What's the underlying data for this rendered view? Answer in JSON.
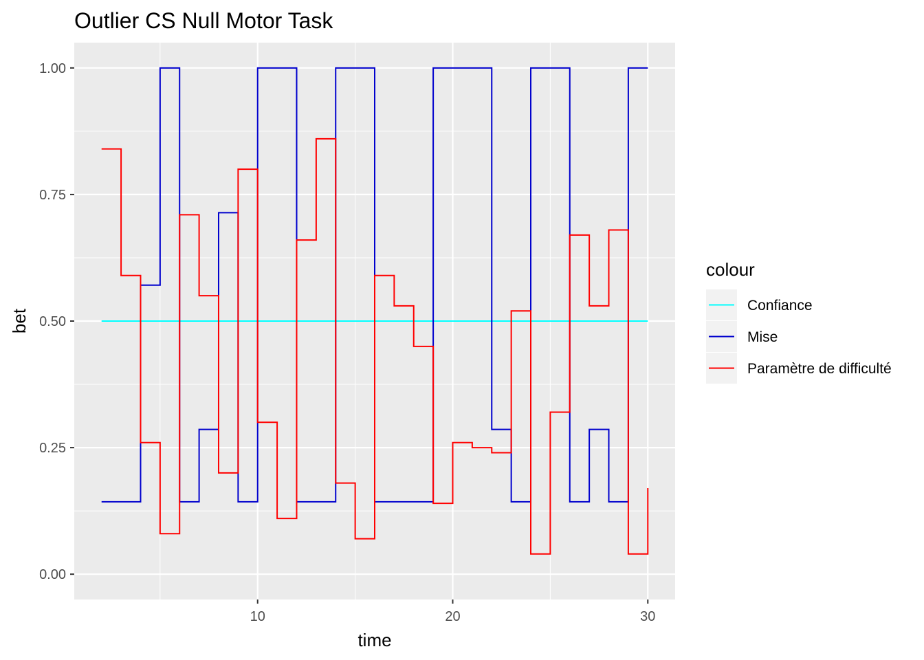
{
  "chart_data": {
    "type": "line",
    "step": true,
    "title": "Outlier CS Null Motor Task",
    "xlabel": "time",
    "ylabel": "bet",
    "xlim": [
      0.6,
      31.4
    ],
    "ylim": [
      -0.05,
      1.05
    ],
    "x_ticks": [
      10,
      20,
      30
    ],
    "x_tick_labels": [
      "10",
      "20",
      "30"
    ],
    "y_ticks": [
      0,
      0.25,
      0.5,
      0.75,
      1
    ],
    "y_tick_labels": [
      "0.00",
      "0.25",
      "0.50",
      "0.75",
      "1.00"
    ],
    "grid": true,
    "legend": {
      "title": "colour",
      "position": "right"
    },
    "x": [
      2,
      3,
      4,
      5,
      6,
      7,
      8,
      9,
      10,
      11,
      12,
      13,
      14,
      15,
      16,
      17,
      18,
      19,
      20,
      21,
      22,
      23,
      24,
      25,
      26,
      27,
      28,
      29,
      30
    ],
    "series": [
      {
        "name": "Confiance",
        "color": "#00FFFF",
        "values": [
          0.5,
          0.5,
          0.5,
          0.5,
          0.5,
          0.5,
          0.5,
          0.5,
          0.5,
          0.5,
          0.5,
          0.5,
          0.5,
          0.5,
          0.5,
          0.5,
          0.5,
          0.5,
          0.5,
          0.5,
          0.5,
          0.5,
          0.5,
          0.5,
          0.5,
          0.5,
          0.5,
          0.5,
          0.5
        ]
      },
      {
        "name": "Mise",
        "color": "#0000CD",
        "values": [
          0.143,
          0.143,
          0.571,
          1.0,
          0.143,
          0.286,
          0.714,
          0.143,
          1.0,
          1.0,
          0.143,
          0.143,
          1.0,
          1.0,
          0.143,
          0.143,
          0.143,
          1.0,
          1.0,
          1.0,
          0.286,
          0.143,
          1.0,
          1.0,
          0.143,
          0.286,
          0.143,
          1.0,
          1.0
        ]
      },
      {
        "name": "Paramètre de difficulté",
        "color": "#FF0000",
        "values": [
          0.84,
          0.59,
          0.26,
          0.08,
          0.71,
          0.55,
          0.2,
          0.8,
          0.3,
          0.11,
          0.66,
          0.86,
          0.18,
          0.07,
          0.59,
          0.53,
          0.45,
          0.14,
          0.26,
          0.25,
          0.24,
          0.52,
          0.04,
          0.32,
          0.67,
          0.53,
          0.68,
          0.04,
          0.17
        ]
      }
    ]
  }
}
